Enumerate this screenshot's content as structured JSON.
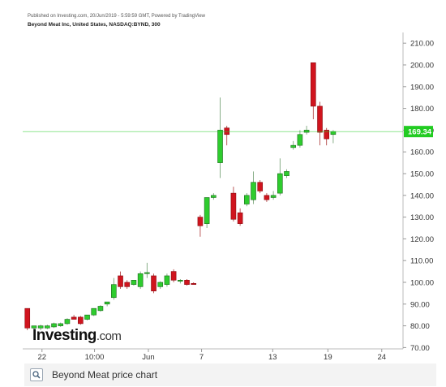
{
  "chart_data": {
    "type": "candlestick",
    "attribution": "Published on Investing.com, 20/Jun/2019 - 5:59:59 GMT, Powered by TradingView",
    "title": "Beyond Meat Inc, United States, NASDAQ:BYND, 300",
    "watermark": {
      "brand": "Investing",
      "suffix": ".com"
    },
    "caption": "Beyond Meat price chart",
    "up_color": "#2ecc2e",
    "down_color": "#d0141e",
    "series": {
      "open": [
        88,
        79,
        79,
        79,
        79.5,
        80,
        81,
        84,
        84,
        83,
        85,
        87,
        90,
        93,
        103,
        100,
        99,
        98,
        104,
        103,
        98,
        99,
        105,
        100.5,
        101,
        99.5,
        130,
        127,
        139,
        155,
        171,
        141,
        132,
        136,
        138,
        146,
        140,
        139,
        141,
        149,
        162,
        163,
        169,
        201,
        181,
        170,
        168
      ],
      "high": [
        88,
        80,
        80.5,
        80.5,
        81.5,
        81.5,
        83.5,
        85,
        84.5,
        85,
        88,
        89.5,
        91,
        102,
        105,
        101,
        101,
        105,
        109,
        104,
        100.5,
        104,
        106,
        101.5,
        101.5,
        100,
        131,
        139,
        141,
        185,
        172,
        144,
        134,
        141,
        151,
        147,
        141,
        142,
        157,
        152,
        165,
        170,
        172,
        201,
        183,
        171,
        170
      ],
      "low": [
        78,
        78.5,
        78,
        78.5,
        79,
        79.5,
        80.5,
        83,
        80.5,
        82.5,
        84.5,
        86.5,
        89,
        92,
        97,
        97,
        98.5,
        97,
        102,
        95,
        97,
        98,
        100,
        99.5,
        98.5,
        99,
        121,
        125,
        138,
        148,
        163,
        128,
        126,
        135,
        136,
        141,
        137,
        138,
        140,
        148,
        161,
        162,
        168,
        175,
        163,
        163,
        164
      ],
      "close": [
        79,
        80,
        80,
        80,
        81,
        81,
        83,
        83,
        81,
        85,
        88,
        89,
        91,
        99,
        98,
        98,
        101,
        104,
        104.5,
        96,
        100,
        103,
        101,
        101,
        99,
        99,
        126,
        139,
        140,
        170,
        168,
        129,
        127,
        140,
        146,
        142,
        138,
        140,
        150,
        151,
        163,
        168,
        170,
        181,
        169,
        166,
        169.34
      ]
    },
    "last_price": 169.34,
    "last_price_color": "#22cc22",
    "xlim": [
      -0.7,
      56.5
    ],
    "xticks": [
      {
        "value": 2.2,
        "label": "22"
      },
      {
        "value": 10.1,
        "label": "10:00"
      },
      {
        "value": 18.2,
        "label": "Jun"
      },
      {
        "value": 26.2,
        "label": "7"
      },
      {
        "value": 36.9,
        "label": "13"
      },
      {
        "value": 45.2,
        "label": "19"
      },
      {
        "value": 53.3,
        "label": "24"
      }
    ],
    "ylim": [
      70,
      210
    ],
    "yticks": [
      {
        "value": 70,
        "label": "70.00"
      },
      {
        "value": 80,
        "label": "80.00"
      },
      {
        "value": 90,
        "label": "90.00"
      },
      {
        "value": 100,
        "label": "100.00"
      },
      {
        "value": 110,
        "label": "110.00"
      },
      {
        "value": 120,
        "label": "120.00"
      },
      {
        "value": 130,
        "label": "130.00"
      },
      {
        "value": 140,
        "label": "140.00"
      },
      {
        "value": 150,
        "label": "150.00"
      },
      {
        "value": 160,
        "label": "160.00"
      },
      {
        "value": 170,
        "label": "170.00"
      },
      {
        "value": 180,
        "label": "180.00"
      },
      {
        "value": 190,
        "label": "190.00"
      },
      {
        "value": 200,
        "label": "200.00"
      },
      {
        "value": 210,
        "label": "210.00"
      }
    ]
  }
}
